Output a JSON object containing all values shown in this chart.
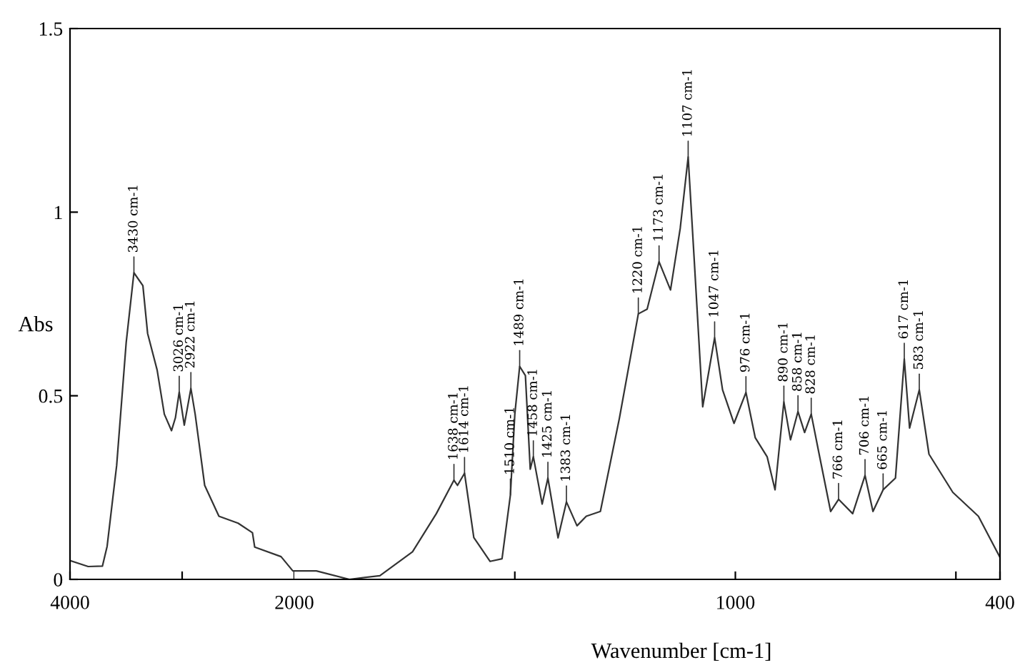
{
  "chart_data": [
    {
      "type": "line",
      "ylabel": "Abs",
      "xlim": [
        4000,
        2000
      ],
      "xticks": [
        4000,
        {
          "value": 3000,
          "label": null
        },
        2000
      ],
      "ylim": [
        0,
        1.5
      ],
      "yticks": [
        0,
        0.5,
        1,
        1.5
      ],
      "marker": "none",
      "line_style": "solid",
      "series": [
        {
          "color": "#333333",
          "x": [
            3987,
            3838,
            3711,
            3669,
            3584,
            3499,
            3430,
            3350,
            3308,
            3223,
            3159,
            3095,
            3060,
            3026,
            2981,
            2922,
            2884,
            2850,
            2799,
            2672,
            2501,
            2373,
            2353,
            2118,
            2013,
            2000
          ],
          "values": [
            0.05,
            0.035,
            0.036,
            0.09,
            0.31,
            0.645,
            0.835,
            0.8,
            0.67,
            0.57,
            0.45,
            0.405,
            0.44,
            0.51,
            0.42,
            0.52,
            0.45,
            0.373,
            0.256,
            0.172,
            0.153,
            0.127,
            0.088,
            0.062,
            0.023,
            0.023
          ]
        }
      ],
      "annotations": [
        {
          "text": "3430 cm-1",
          "x": 3430,
          "y": 0.835
        },
        {
          "text": "3026 cm-1",
          "x": 3026,
          "y": 0.51
        },
        {
          "text": "2922 cm-1",
          "x": 2922,
          "y": 0.52
        }
      ]
    },
    {
      "type": "line",
      "xlabel": "Wavenumber [cm-1]",
      "xlim": [
        2000,
        400
      ],
      "xticks": [
        {
          "value": 1500,
          "label": null
        },
        1000,
        {
          "value": 500,
          "label": null
        },
        400
      ],
      "ylim": [
        0,
        1.5
      ],
      "tick_labels": "x",
      "marker": "none",
      "line_style": "solid",
      "series": [
        {
          "color": "#333333",
          "x": [
            2000,
            1950,
            1875,
            1806,
            1732,
            1678,
            1638,
            1630,
            1614,
            1593,
            1556,
            1529,
            1510,
            1500,
            1489,
            1476,
            1465,
            1458,
            1438,
            1425,
            1402,
            1383,
            1359,
            1338,
            1306,
            1263,
            1220,
            1200,
            1173,
            1147,
            1125,
            1107,
            1093,
            1074,
            1047,
            1029,
            1003,
            976,
            955,
            928,
            910,
            890,
            875,
            858,
            843,
            828,
            811,
            784,
            766,
            734,
            706,
            688,
            665,
            637,
            617,
            605,
            583,
            561,
            507,
            449,
            401
          ],
          "values": [
            0.023,
            0.023,
            0.0,
            0.01,
            0.075,
            0.179,
            0.27,
            0.256,
            0.289,
            0.114,
            0.049,
            0.056,
            0.23,
            0.45,
            0.58,
            0.555,
            0.3,
            0.334,
            0.205,
            0.276,
            0.113,
            0.211,
            0.146,
            0.172,
            0.185,
            0.438,
            0.723,
            0.736,
            0.865,
            0.788,
            0.956,
            1.15,
            0.865,
            0.47,
            0.658,
            0.516,
            0.425,
            0.509,
            0.386,
            0.334,
            0.244,
            0.483,
            0.38,
            0.457,
            0.4,
            0.45,
            0.347,
            0.185,
            0.218,
            0.179,
            0.283,
            0.185,
            0.244,
            0.276,
            0.6,
            0.412,
            0.516,
            0.341,
            0.237,
            0.172,
            0.062
          ]
        }
      ],
      "annotations": [
        {
          "text": "1638 cm-1",
          "x": 1638,
          "y": 0.27
        },
        {
          "text": "1614 cm-1",
          "x": 1614,
          "y": 0.289
        },
        {
          "text": "1510 cm-1",
          "x": 1510,
          "y": 0.23
        },
        {
          "text": "1489 cm-1",
          "x": 1489,
          "y": 0.58
        },
        {
          "text": "1458 cm-1",
          "x": 1458,
          "y": 0.334
        },
        {
          "text": "1425 cm-1",
          "x": 1425,
          "y": 0.276
        },
        {
          "text": "1383 cm-1",
          "x": 1383,
          "y": 0.211
        },
        {
          "text": "1220 cm-1",
          "x": 1220,
          "y": 0.723
        },
        {
          "text": "1173 cm-1",
          "x": 1173,
          "y": 0.865
        },
        {
          "text": "1107 cm-1",
          "x": 1107,
          "y": 1.15
        },
        {
          "text": "1047 cm-1",
          "x": 1047,
          "y": 0.658
        },
        {
          "text": "976 cm-1",
          "x": 976,
          "y": 0.509
        },
        {
          "text": "890 cm-1",
          "x": 890,
          "y": 0.483
        },
        {
          "text": "858 cm-1",
          "x": 858,
          "y": 0.457
        },
        {
          "text": "828 cm-1",
          "x": 828,
          "y": 0.45
        },
        {
          "text": "766 cm-1",
          "x": 766,
          "y": 0.218
        },
        {
          "text": "706 cm-1",
          "x": 706,
          "y": 0.283
        },
        {
          "text": "665 cm-1",
          "x": 665,
          "y": 0.244
        },
        {
          "text": "617 cm-1",
          "x": 617,
          "y": 0.6
        },
        {
          "text": "583 cm-1",
          "x": 583,
          "y": 0.516
        }
      ]
    }
  ]
}
